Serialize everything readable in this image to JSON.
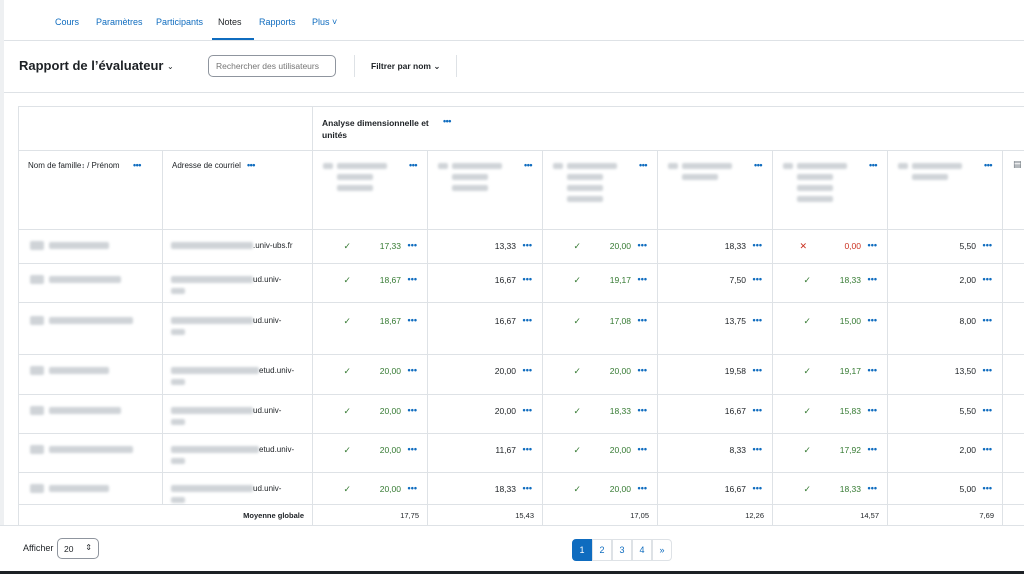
{
  "nav": {
    "tabs": [
      {
        "label": "Cours"
      },
      {
        "label": "Paramètres"
      },
      {
        "label": "Participants"
      },
      {
        "label": "Notes"
      },
      {
        "label": "Rapports"
      },
      {
        "label": "Plus ˅"
      }
    ],
    "active": "Notes"
  },
  "header": {
    "title": "Rapport de l’évaluateur",
    "search_placeholder": "Rechercher des utilisateurs",
    "filter_label": "Filtrer par nom"
  },
  "grid": {
    "category_title": "Analyse dimensionnelle et unités",
    "col_name": "Nom de famille",
    "col_name_sep": "/ Prénom",
    "col_email": "Adresse de courriel",
    "rows": [
      {
        "email_tail": ".univ-ubs.fr",
        "grades": [
          "17,33",
          "13,33",
          "20,00",
          "18,33",
          "0,00",
          "5,50"
        ],
        "status": [
          "ok",
          "",
          "ok",
          "",
          "bad",
          ""
        ]
      },
      {
        "email_tail": "ud.univ-",
        "grades": [
          "18,67",
          "16,67",
          "19,17",
          "7,50",
          "18,33",
          "2,00"
        ],
        "status": [
          "ok",
          "",
          "ok",
          "",
          "ok",
          ""
        ]
      },
      {
        "email_tail": "ud.univ-",
        "grades": [
          "18,67",
          "16,67",
          "17,08",
          "13,75",
          "15,00",
          "8,00"
        ],
        "status": [
          "ok",
          "",
          "ok",
          "",
          "ok",
          ""
        ]
      },
      {
        "email_tail": "etud.univ-",
        "grades": [
          "20,00",
          "20,00",
          "20,00",
          "19,58",
          "19,17",
          "13,50"
        ],
        "status": [
          "ok",
          "",
          "ok",
          "",
          "ok",
          ""
        ]
      },
      {
        "email_tail": "ud.univ-",
        "grades": [
          "20,00",
          "20,00",
          "18,33",
          "16,67",
          "15,83",
          "5,50"
        ],
        "status": [
          "ok",
          "",
          "ok",
          "",
          "ok",
          ""
        ]
      },
      {
        "email_tail": "etud.univ-",
        "grades": [
          "20,00",
          "11,67",
          "20,00",
          "8,33",
          "17,92",
          "2,00"
        ],
        "status": [
          "ok",
          "",
          "ok",
          "",
          "ok",
          ""
        ]
      },
      {
        "email_tail": "ud.univ-",
        "grades": [
          "20,00",
          "18,33",
          "20,00",
          "16,67",
          "18,33",
          "5,00"
        ],
        "status": [
          "ok",
          "",
          "ok",
          "",
          "ok",
          ""
        ]
      }
    ],
    "average_label": "Moyenne globale",
    "averages": [
      "17,75",
      "15,43",
      "17,05",
      "12,26",
      "14,57",
      "7,69"
    ]
  },
  "footer": {
    "show_label": "Afficher",
    "per_page": "20",
    "pages": [
      "1",
      "2",
      "3",
      "4",
      "»"
    ],
    "current_page": "1"
  },
  "colors": {
    "accent": "#0f6cbf",
    "ok": "#357a32",
    "bad": "#ca3120"
  }
}
